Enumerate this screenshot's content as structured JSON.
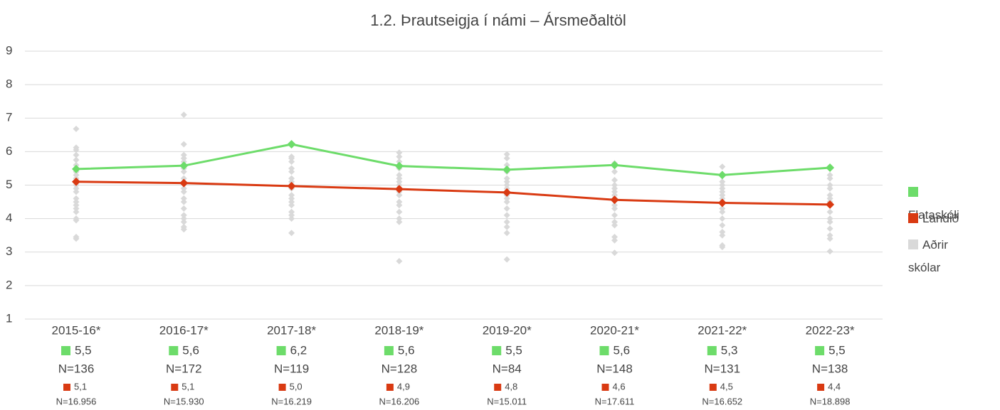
{
  "chart_data": {
    "type": "line",
    "title": "1.2. Þrautseigja í námi – Ársmeðaltöl",
    "categories": [
      "2015-16*",
      "2016-17*",
      "2017-18*",
      "2018-19*",
      "2019-20*",
      "2020-21*",
      "2021-22*",
      "2022-23*"
    ],
    "ylim": [
      1,
      9
    ],
    "yticks": [
      1,
      2,
      3,
      4,
      5,
      6,
      7,
      8,
      9
    ],
    "grid": true,
    "legend": "right",
    "series": [
      {
        "name": "Flataskóli",
        "color": "#6ddc6a",
        "values": [
          5.48,
          5.58,
          6.22,
          5.57,
          5.46,
          5.6,
          5.3,
          5.52
        ],
        "value_labels": [
          "5,5",
          "5,6",
          "6,2",
          "5,6",
          "5,5",
          "5,6",
          "5,3",
          "5,5"
        ],
        "n_labels": [
          "N=136",
          "N=172",
          "N=119",
          "N=128",
          "N=84",
          "N=148",
          "N=131",
          "N=138"
        ]
      },
      {
        "name": "Landið",
        "color": "#d93a12",
        "values": [
          5.1,
          5.06,
          4.97,
          4.88,
          4.78,
          4.56,
          4.47,
          4.42
        ],
        "value_labels": [
          "5,1",
          "5,1",
          "5,0",
          "4,9",
          "4,8",
          "4,6",
          "4,5",
          "4,4"
        ],
        "n_labels": [
          "N=16.956",
          "N=15.930",
          "N=16.219",
          "N=16.206",
          "N=15.011",
          "N=17.611",
          "N=16.652",
          "N=18.898"
        ]
      },
      {
        "name": "Aðrir skólar",
        "color": "#d9d9d9",
        "values": [
          [
            6.68,
            6.12,
            6.05,
            5.9,
            5.75,
            5.6,
            5.4,
            5.3,
            5.2,
            5.0,
            4.9,
            4.8,
            4.6,
            4.5,
            4.4,
            4.3,
            4.2,
            4.0,
            3.95,
            3.45,
            3.4
          ],
          [
            7.1,
            6.22,
            5.9,
            5.8,
            5.7,
            5.5,
            5.4,
            5.2,
            5.1,
            4.9,
            4.8,
            4.6,
            4.5,
            4.3,
            4.1,
            4.0,
            3.9,
            3.75,
            3.68
          ],
          [
            5.85,
            5.8,
            5.7,
            5.5,
            5.4,
            5.2,
            5.1,
            5.0,
            4.9,
            4.7,
            4.6,
            4.5,
            4.4,
            4.2,
            4.1,
            4.0,
            3.57
          ],
          [
            5.97,
            5.85,
            5.7,
            5.5,
            5.3,
            5.2,
            5.1,
            5.0,
            4.8,
            4.7,
            4.5,
            4.4,
            4.2,
            4.0,
            3.9,
            2.73
          ],
          [
            5.92,
            5.8,
            5.6,
            5.4,
            5.2,
            5.1,
            5.0,
            4.9,
            4.7,
            4.6,
            4.5,
            4.3,
            4.1,
            3.9,
            3.75,
            3.57,
            2.78
          ],
          [
            5.65,
            5.4,
            5.15,
            5.0,
            4.9,
            4.8,
            4.7,
            4.6,
            4.4,
            4.3,
            4.1,
            3.9,
            3.8,
            3.45,
            3.35,
            2.98
          ],
          [
            5.55,
            5.1,
            5.0,
            4.9,
            4.8,
            4.7,
            4.6,
            4.5,
            4.3,
            4.2,
            4.0,
            3.8,
            3.6,
            3.5,
            3.2,
            3.15
          ],
          [
            5.3,
            5.2,
            5.0,
            4.9,
            4.7,
            4.6,
            4.5,
            4.4,
            4.2,
            4.0,
            3.9,
            3.7,
            3.5,
            3.4,
            3.02
          ]
        ]
      }
    ]
  }
}
